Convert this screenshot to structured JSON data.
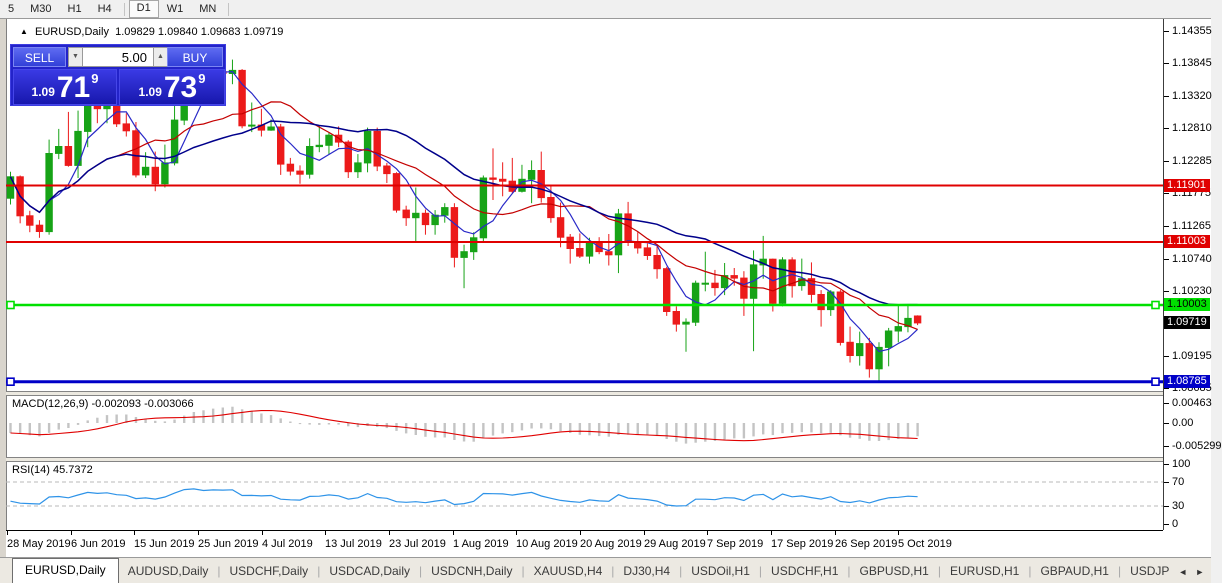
{
  "toolbar": {
    "periods": [
      "5",
      "M30",
      "H1",
      "H4",
      "D1",
      "W1",
      "MN"
    ],
    "active": "D1"
  },
  "header": {
    "symbol_line": {
      "symbol": "EURUSD,Daily",
      "open": "1.09829",
      "high": "1.09840",
      "low": "1.09683",
      "close": "1.09719"
    }
  },
  "trade_panel": {
    "sell_label": "SELL",
    "buy_label": "BUY",
    "volume": "5.00",
    "sell_price": {
      "prefix": "1.09",
      "big": "71",
      "pip": "9"
    },
    "buy_price": {
      "prefix": "1.09",
      "big": "73",
      "pip": "9"
    }
  },
  "tabs": {
    "items": [
      "EURUSD,Daily",
      "AUDUSD,Daily",
      "USDCHF,Daily",
      "USDCAD,Daily",
      "USDCNH,Daily",
      "XAUUSD,H4",
      "DJ30,H4",
      "USDOil,H1",
      "USDCHF,H1",
      "GBPUSD,H1",
      "EURUSD,H1",
      "GBPAUD,H1",
      "USDJP"
    ],
    "active_index": 0
  },
  "chart_data": {
    "type": "candlestick",
    "symbol": "EURUSD",
    "timeframe": "Daily",
    "x_labels": [
      "28 May 2019",
      "6 Jun 2019",
      "15 Jun 2019",
      "25 Jun 2019",
      "4 Jul 2019",
      "13 Jul 2019",
      "23 Jul 2019",
      "1 Aug 2019",
      "10 Aug 2019",
      "20 Aug 2019",
      "29 Aug 2019",
      "7 Sep 2019",
      "17 Sep 2019",
      "26 Sep 2019",
      "5 Oct 2019"
    ],
    "y_ticks": [
      "1.14355",
      "1.13845",
      "1.13320",
      "1.12810",
      "1.12285",
      "1.11775",
      "1.11265",
      "1.10740",
      "1.10230",
      "1.09195",
      "1.08685"
    ],
    "candle_colors": {
      "bull": "#17A317",
      "bear": "#EC1A1A"
    },
    "candles": [
      [
        1.117,
        1.1212,
        1.116,
        1.1204
      ],
      [
        1.1204,
        1.1206,
        1.113,
        1.1142
      ],
      [
        1.1142,
        1.115,
        1.1116,
        1.1127
      ],
      [
        1.1127,
        1.1135,
        1.1107,
        1.1117
      ],
      [
        1.1117,
        1.1263,
        1.1112,
        1.1241
      ],
      [
        1.1241,
        1.128,
        1.1232,
        1.1252
      ],
      [
        1.1252,
        1.1307,
        1.122,
        1.1222
      ],
      [
        1.1222,
        1.1309,
        1.1202,
        1.1276
      ],
      [
        1.1276,
        1.1348,
        1.1251,
        1.1333
      ],
      [
        1.1333,
        1.134,
        1.1289,
        1.1312
      ],
      [
        1.1312,
        1.1338,
        1.1289,
        1.1326
      ],
      [
        1.1326,
        1.1344,
        1.1283,
        1.1288
      ],
      [
        1.1288,
        1.1305,
        1.1268,
        1.1277
      ],
      [
        1.1277,
        1.1291,
        1.1203,
        1.1207
      ],
      [
        1.1207,
        1.1243,
        1.1202,
        1.1219
      ],
      [
        1.1219,
        1.1244,
        1.1181,
        1.1193
      ],
      [
        1.1193,
        1.1255,
        1.1187,
        1.1226
      ],
      [
        1.1226,
        1.1318,
        1.1222,
        1.1294
      ],
      [
        1.1294,
        1.1378,
        1.1286,
        1.1368
      ],
      [
        1.1368,
        1.1392,
        1.1362,
        1.1385
      ],
      [
        1.1385,
        1.139,
        1.1344,
        1.1358
      ],
      [
        1.1358,
        1.1385,
        1.1348,
        1.1371
      ],
      [
        1.1371,
        1.1388,
        1.1357,
        1.1368
      ],
      [
        1.1368,
        1.139,
        1.1351,
        1.1373
      ],
      [
        1.1373,
        1.1375,
        1.1281,
        1.1285
      ],
      [
        1.1285,
        1.1322,
        1.1275,
        1.1286
      ],
      [
        1.1286,
        1.1312,
        1.1268,
        1.1278
      ],
      [
        1.1278,
        1.1295,
        1.1277,
        1.1283
      ],
      [
        1.1283,
        1.1288,
        1.1207,
        1.1224
      ],
      [
        1.1224,
        1.1234,
        1.1206,
        1.1213
      ],
      [
        1.1213,
        1.1222,
        1.1193,
        1.1208
      ],
      [
        1.1208,
        1.1265,
        1.1201,
        1.1252
      ],
      [
        1.1252,
        1.1285,
        1.1243,
        1.1254
      ],
      [
        1.1254,
        1.1275,
        1.1239,
        1.127
      ],
      [
        1.127,
        1.1284,
        1.1251,
        1.1259
      ],
      [
        1.1259,
        1.1262,
        1.1202,
        1.1212
      ],
      [
        1.1212,
        1.124,
        1.1202,
        1.1226
      ],
      [
        1.1226,
        1.1282,
        1.1211,
        1.1276
      ],
      [
        1.1276,
        1.1282,
        1.1213,
        1.1221
      ],
      [
        1.1221,
        1.1226,
        1.1194,
        1.1209
      ],
      [
        1.1209,
        1.1211,
        1.1147,
        1.1151
      ],
      [
        1.1151,
        1.1158,
        1.1126,
        1.1139
      ],
      [
        1.1139,
        1.1187,
        1.1101,
        1.1146
      ],
      [
        1.1146,
        1.1152,
        1.1112,
        1.1128
      ],
      [
        1.1128,
        1.1151,
        1.1112,
        1.1143
      ],
      [
        1.1143,
        1.1162,
        1.1131,
        1.1155
      ],
      [
        1.1155,
        1.1162,
        1.106,
        1.1076
      ],
      [
        1.1076,
        1.1096,
        1.1027,
        1.1085
      ],
      [
        1.1085,
        1.1116,
        1.1072,
        1.1107
      ],
      [
        1.1107,
        1.1206,
        1.1101,
        1.1202
      ],
      [
        1.1202,
        1.1249,
        1.1167,
        1.12
      ],
      [
        1.12,
        1.1227,
        1.1173,
        1.1197
      ],
      [
        1.1197,
        1.1234,
        1.1178,
        1.1181
      ],
      [
        1.1181,
        1.1223,
        1.1179,
        1.12
      ],
      [
        1.12,
        1.123,
        1.1162,
        1.1214
      ],
      [
        1.1214,
        1.1244,
        1.1163,
        1.1171
      ],
      [
        1.1171,
        1.119,
        1.1131,
        1.1139
      ],
      [
        1.1139,
        1.1163,
        1.1092,
        1.1108
      ],
      [
        1.1108,
        1.1113,
        1.1066,
        1.109
      ],
      [
        1.109,
        1.1114,
        1.1075,
        1.1078
      ],
      [
        1.1078,
        1.1107,
        1.1066,
        1.11
      ],
      [
        1.11,
        1.1108,
        1.1081,
        1.1085
      ],
      [
        1.1085,
        1.1113,
        1.1063,
        1.108
      ],
      [
        1.108,
        1.1153,
        1.1051,
        1.1145
      ],
      [
        1.1145,
        1.1164,
        1.1094,
        1.1101
      ],
      [
        1.1101,
        1.1116,
        1.1082,
        1.1091
      ],
      [
        1.1091,
        1.1098,
        1.1072,
        1.1079
      ],
      [
        1.1079,
        1.1094,
        1.1042,
        1.1058
      ],
      [
        1.1058,
        1.1061,
        1.0983,
        1.099
      ],
      [
        1.099,
        1.0998,
        1.0958,
        1.097
      ],
      [
        1.097,
        1.0979,
        1.0926,
        1.0973
      ],
      [
        1.0973,
        1.1039,
        1.0967,
        1.1035
      ],
      [
        1.1035,
        1.1085,
        1.1022,
        1.1035
      ],
      [
        1.1035,
        1.1056,
        1.1015,
        1.1028
      ],
      [
        1.1028,
        1.1067,
        1.1016,
        1.1047
      ],
      [
        1.1047,
        1.1059,
        1.1031,
        1.1043
      ],
      [
        1.1043,
        1.1054,
        1.0983,
        1.1011
      ],
      [
        1.1011,
        1.1087,
        1.0927,
        1.1064
      ],
      [
        1.1064,
        1.111,
        1.1042,
        1.1073
      ],
      [
        1.1073,
        1.1074,
        1.099,
        1.1003
      ],
      [
        1.1003,
        1.1076,
        1.0998,
        1.1072
      ],
      [
        1.1072,
        1.1076,
        1.1012,
        1.1031
      ],
      [
        1.1031,
        1.1074,
        1.1023,
        1.1042
      ],
      [
        1.1042,
        1.1068,
        1.1004,
        1.1017
      ],
      [
        1.1017,
        1.1024,
        1.0966,
        1.0993
      ],
      [
        1.0993,
        1.1024,
        1.0983,
        1.1021
      ],
      [
        1.1021,
        1.1024,
        1.0936,
        1.0941
      ],
      [
        1.0941,
        1.0966,
        1.0909,
        1.092
      ],
      [
        1.092,
        1.0958,
        1.0904,
        1.0939
      ],
      [
        1.0939,
        1.0948,
        1.0885,
        1.0899
      ],
      [
        1.0899,
        1.0941,
        1.0879,
        1.0933
      ],
      [
        1.0933,
        1.0964,
        1.0903,
        1.0959
      ],
      [
        1.0959,
        1.0999,
        1.0941,
        1.0966
      ],
      [
        1.0966,
        1.0999,
        1.0957,
        1.0979
      ],
      [
        1.09829,
        1.0984,
        1.09683,
        1.09719
      ]
    ],
    "moving_averages": [
      {
        "period": 5,
        "color": "#2A2AC8",
        "width": 1.2
      },
      {
        "period": 12,
        "color": "#C40000",
        "width": 1.2
      },
      {
        "period": 24,
        "color": "#00008B",
        "width": 1.5
      }
    ],
    "levels": [
      {
        "price": 1.11901,
        "label": "1.11901",
        "color": "#E00000",
        "width": 2,
        "handles": false,
        "label_fg": "#FFFFFF"
      },
      {
        "price": 1.11003,
        "label": "1.11003",
        "color": "#E00000",
        "width": 2,
        "handles": false,
        "label_fg": "#FFFFFF"
      },
      {
        "price": 1.10003,
        "label": "1.10003",
        "color": "#00E000",
        "width": 2.6,
        "handles": true,
        "label_fg": "#000000"
      },
      {
        "price": 1.08785,
        "label": "1.08785",
        "color": "#0000C8",
        "width": 3,
        "handles": true,
        "label_fg": "#FFFFFF"
      }
    ],
    "current_price": {
      "price": 1.09719,
      "label": "1.09719",
      "bg": "#000000",
      "fg": "#FFFFFF"
    },
    "macd": {
      "label": "MACD(12,26,9)",
      "value_main": "-0.002093",
      "value_signal": "-0.003066",
      "y_ticks": [
        "0.00463",
        "0.00",
        "-0.005299"
      ],
      "histogram_color": "#C4C4C4",
      "signal_color": "#E00000"
    },
    "rsi": {
      "label": "RSI(14)",
      "value": "45.7372",
      "y_ticks": [
        "100",
        "70",
        "30",
        "0"
      ],
      "levels": [
        70,
        30
      ],
      "line_color": "#2E93E8"
    }
  }
}
